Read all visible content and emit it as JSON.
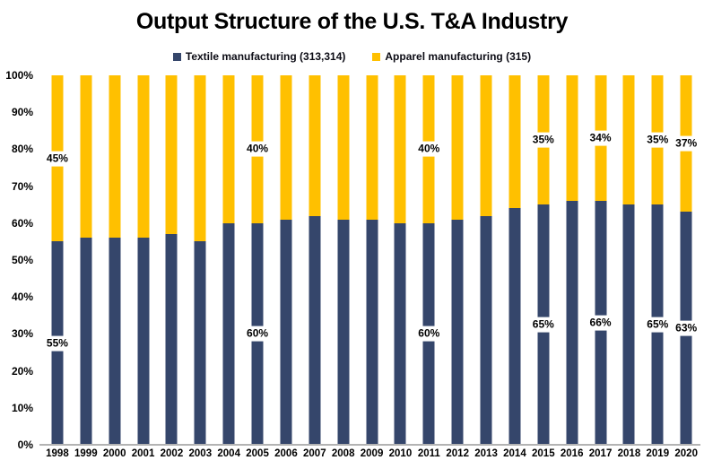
{
  "chart_data": {
    "type": "bar",
    "stacked": true,
    "title": "Output Structure of the U.S. T&A Industry",
    "categories": [
      "1998",
      "1999",
      "2000",
      "2001",
      "2002",
      "2003",
      "2004",
      "2005",
      "2006",
      "2007",
      "2008",
      "2009",
      "2010",
      "2011",
      "2012",
      "2013",
      "2014",
      "2015",
      "2016",
      "2017",
      "2018",
      "2019",
      "2020"
    ],
    "series": [
      {
        "name": "Textile manufacturing (313,314)",
        "color": "#35466B",
        "values": [
          55,
          56,
          56,
          56,
          57,
          55,
          60,
          60,
          61,
          62,
          61,
          61,
          60,
          60,
          61,
          62,
          64,
          65,
          66,
          66,
          65,
          65,
          63
        ]
      },
      {
        "name": "Apparel manufacturing (315)",
        "color": "#FFC000",
        "values": [
          45,
          44,
          44,
          44,
          43,
          45,
          40,
          40,
          39,
          38,
          39,
          39,
          40,
          40,
          39,
          38,
          36,
          35,
          34,
          34,
          35,
          35,
          37
        ]
      }
    ],
    "data_labels": {
      "1998": {
        "textile": "55%",
        "apparel": "45%"
      },
      "2005": {
        "textile": "60%",
        "apparel": "40%"
      },
      "2011": {
        "textile": "60%",
        "apparel": "40%"
      },
      "2015": {
        "textile": "65%",
        "apparel": "35%"
      },
      "2017": {
        "textile": "66%",
        "apparel": "34%"
      },
      "2019": {
        "textile": "65%",
        "apparel": "35%"
      },
      "2020": {
        "textile": "63%",
        "apparel": "37%"
      }
    },
    "y_ticks": [
      "0%",
      "10%",
      "20%",
      "30%",
      "40%",
      "50%",
      "60%",
      "70%",
      "80%",
      "90%",
      "100%"
    ],
    "ylim": [
      0,
      100
    ],
    "xlabel": "",
    "ylabel": "",
    "grid": false,
    "legend_position": "top"
  }
}
